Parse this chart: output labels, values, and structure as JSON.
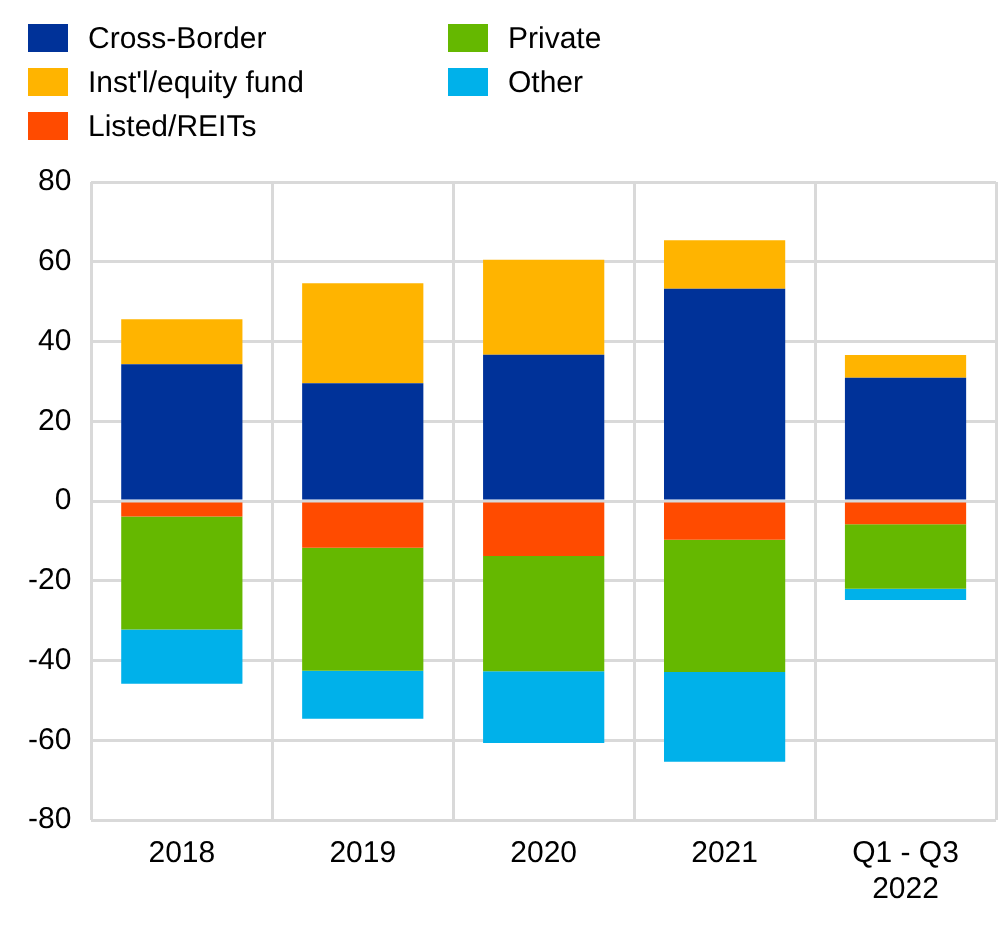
{
  "chart_data": {
    "type": "bar",
    "stacked": true,
    "grid": true,
    "legend": "top left",
    "categories": [
      "2018",
      "2019",
      "2020",
      "2021",
      "Q1 - Q3 2022"
    ],
    "ylim": [
      -80,
      80
    ],
    "yticks": [
      -80,
      -60,
      -40,
      -20,
      0,
      20,
      40,
      60,
      80
    ],
    "series": [
      {
        "name": "Cross-Border",
        "color": "#003299",
        "values": [
          34.3,
          29.5,
          36.7,
          53.2,
          30.9
        ]
      },
      {
        "name": "Inst'l/equity fund",
        "color": "#ffb400",
        "values": [
          11.3,
          25.1,
          23.8,
          12.2,
          5.7
        ]
      },
      {
        "name": "Listed/REITs",
        "color": "#ff4b00",
        "values": [
          -3.9,
          -11.7,
          -13.8,
          -9.7,
          -5.8
        ]
      },
      {
        "name": "Private",
        "color": "#65b800",
        "values": [
          -28.3,
          -30.9,
          -28.9,
          -33.2,
          -16.2
        ]
      },
      {
        "name": "Other",
        "color": "#00b1ea",
        "values": [
          -13.6,
          -12.0,
          -18.0,
          -22.5,
          -2.8
        ]
      }
    ]
  }
}
